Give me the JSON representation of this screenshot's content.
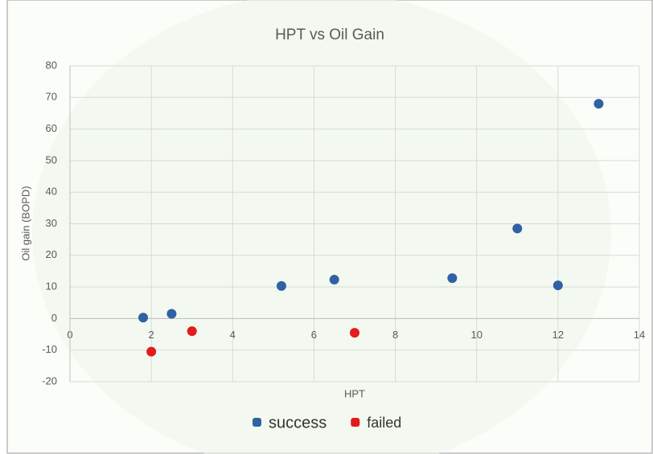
{
  "chart_data": {
    "type": "scatter",
    "title": "HPT vs Oil Gain",
    "x_label": "HPT",
    "y_label": "Oil gain (BOPD)",
    "series": [
      {
        "name": "success",
        "color": "#2f62a3",
        "x": [
          1.8,
          2.5,
          5.2,
          6.5,
          9.4,
          11,
          12,
          13
        ],
        "values": [
          0.3,
          1.5,
          10.3,
          12.3,
          12.8,
          28.5,
          10.5,
          68
        ]
      },
      {
        "name": "failed",
        "color": "#e41a1c",
        "x": [
          2,
          3,
          7
        ],
        "values": [
          -10.5,
          -4,
          -4.5
        ]
      }
    ],
    "xlim": [
      0,
      14
    ],
    "xticks": [
      0,
      2,
      4,
      6,
      8,
      10,
      12,
      14
    ],
    "ylim": [
      -20,
      80
    ],
    "yticks": [
      -20,
      -10,
      0,
      10,
      20,
      30,
      40,
      50,
      60,
      70,
      80
    ],
    "grid": true,
    "legend": "bottom"
  }
}
